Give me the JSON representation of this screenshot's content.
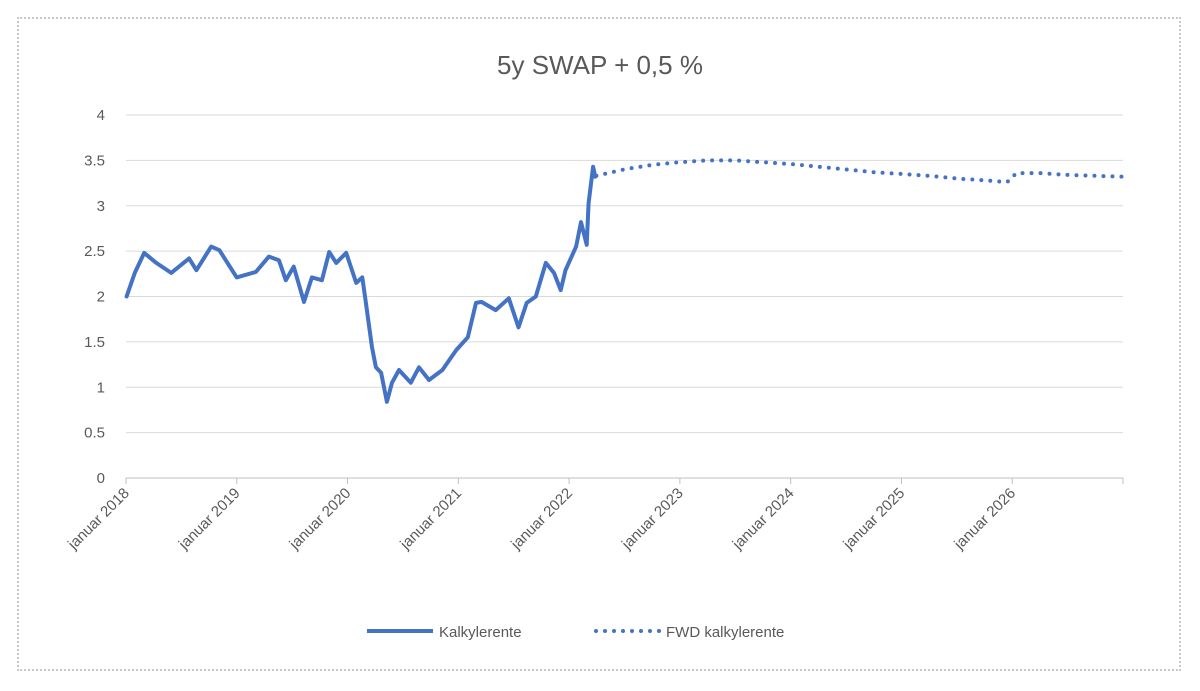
{
  "chart_data": {
    "type": "line",
    "title": "5y SWAP + 0,5 %",
    "xlabel": "",
    "ylabel": "",
    "ylim": [
      0,
      4
    ],
    "yticks": [
      "0",
      "0.5",
      "1",
      "1.5",
      "2",
      "2.5",
      "3",
      "3.5",
      "4"
    ],
    "xlim": [
      "2018-01-01",
      "2027-01-01"
    ],
    "xticks": [
      "januar 2018",
      "januar 2019",
      "januar 2020",
      "januar 2021",
      "januar 2022",
      "januar 2023",
      "januar 2024",
      "januar 2025",
      "januar 2026"
    ],
    "grid": true,
    "legend_position": "bottom",
    "series": [
      {
        "name": "Kalkylerente",
        "style": "solid",
        "color": "#4472C4",
        "x": [
          "2018-01-03",
          "2018-01-30",
          "2018-03-02",
          "2018-04-11",
          "2018-05-30",
          "2018-07-28",
          "2018-08-21",
          "2018-10-09",
          "2018-11-05",
          "2019-01-01",
          "2019-03-05",
          "2019-04-17",
          "2019-05-20",
          "2019-06-12",
          "2019-07-08",
          "2019-08-11",
          "2019-09-06",
          "2019-10-09",
          "2019-11-02",
          "2019-11-25",
          "2019-12-28",
          "2020-01-30",
          "2020-02-19",
          "2020-03-02",
          "2020-03-22",
          "2020-04-04",
          "2020-04-21",
          "2020-05-10",
          "2020-05-27",
          "2020-06-19",
          "2020-07-28",
          "2020-08-24",
          "2020-09-26",
          "2020-11-09",
          "2020-12-25",
          "2021-02-01",
          "2021-02-28",
          "2021-03-18",
          "2021-05-04",
          "2021-06-16",
          "2021-07-18",
          "2021-08-14",
          "2021-09-13",
          "2021-10-16",
          "2021-11-12",
          "2021-12-04",
          "2021-12-20",
          "2022-01-24",
          "2022-02-09",
          "2022-02-28",
          "2022-03-06",
          "2022-03-21",
          "2022-03-28"
        ],
        "values": [
          2.0,
          2.26,
          2.48,
          2.37,
          2.26,
          2.42,
          2.29,
          2.55,
          2.51,
          2.21,
          2.27,
          2.44,
          2.4,
          2.18,
          2.33,
          1.94,
          2.21,
          2.18,
          2.49,
          2.37,
          2.48,
          2.15,
          2.21,
          1.93,
          1.44,
          1.22,
          1.16,
          0.84,
          1.05,
          1.19,
          1.05,
          1.22,
          1.08,
          1.19,
          1.41,
          1.55,
          1.93,
          1.94,
          1.85,
          1.98,
          1.66,
          1.93,
          2.0,
          2.37,
          2.26,
          2.07,
          2.29,
          2.55,
          2.82,
          2.57,
          3.03,
          3.43,
          3.32
        ]
      },
      {
        "name": "FWD kalkylerente",
        "style": "dotted",
        "color": "#4472C4",
        "x": [
          "2022-04-01",
          "2022-07-01",
          "2022-10-01",
          "2023-01-01",
          "2023-04-01",
          "2023-07-01",
          "2023-10-01",
          "2024-01-01",
          "2024-04-01",
          "2024-07-01",
          "2024-10-01",
          "2025-01-01",
          "2025-04-01",
          "2025-07-01",
          "2025-10-01",
          "2025-12-15",
          "2026-01-15",
          "2026-04-01",
          "2026-07-01",
          "2026-10-01",
          "2026-12-31"
        ],
        "values": [
          3.33,
          3.4,
          3.45,
          3.48,
          3.5,
          3.5,
          3.48,
          3.46,
          3.43,
          3.4,
          3.37,
          3.35,
          3.33,
          3.3,
          3.28,
          3.26,
          3.36,
          3.36,
          3.34,
          3.33,
          3.32
        ]
      }
    ]
  }
}
